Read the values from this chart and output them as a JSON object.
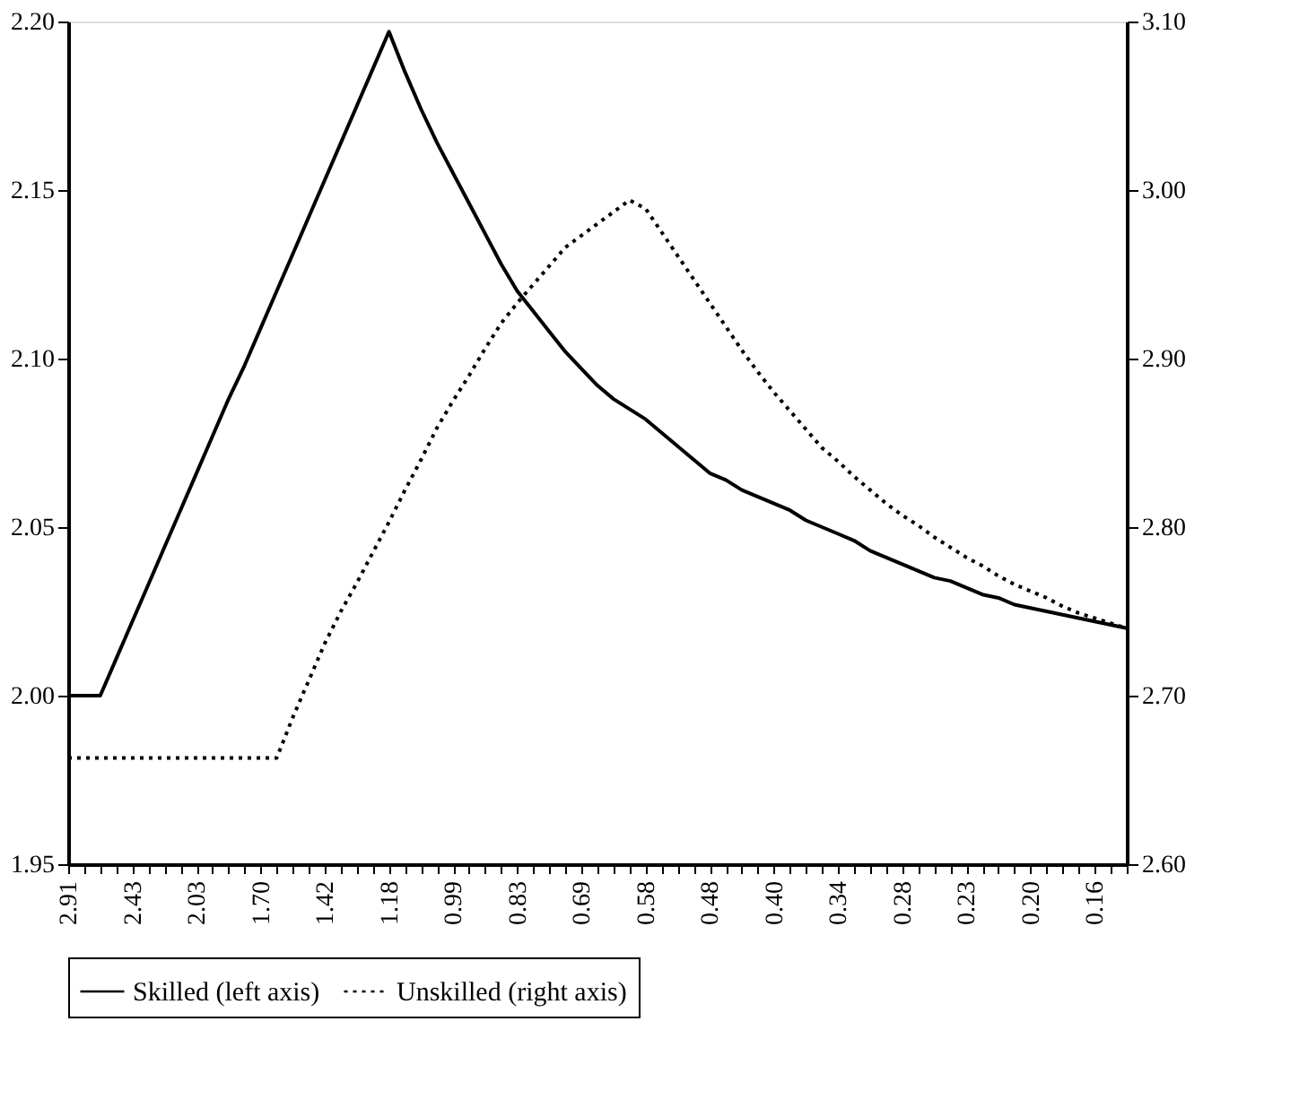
{
  "chart_data": {
    "type": "line",
    "categories": [
      "2.91",
      null,
      null,
      null,
      "2.43",
      null,
      null,
      null,
      "2.03",
      null,
      null,
      null,
      "1.70",
      null,
      null,
      null,
      "1.42",
      null,
      null,
      null,
      "1.18",
      null,
      null,
      null,
      "0.99",
      null,
      null,
      null,
      "0.83",
      null,
      null,
      null,
      "0.69",
      null,
      null,
      null,
      "0.58",
      null,
      null,
      null,
      "0.48",
      null,
      null,
      null,
      "0.40",
      null,
      null,
      null,
      "0.34",
      null,
      null,
      null,
      "0.28",
      null,
      null,
      null,
      "0.23",
      null,
      null,
      null,
      "0.20",
      null,
      null,
      null,
      "0.16",
      null,
      null
    ],
    "series": [
      {
        "name": "Skilled (left axis)",
        "color": "#000000",
        "line_style": "solid",
        "values": [
          2.0,
          2.0,
          2.0,
          2.011,
          2.022,
          2.033,
          2.044,
          2.055,
          2.066,
          2.077,
          2.088,
          2.098,
          2.109,
          2.12,
          2.131,
          2.142,
          2.153,
          2.164,
          2.175,
          2.186,
          2.197,
          2.185,
          2.174,
          2.164,
          2.155,
          2.146,
          2.137,
          2.128,
          2.12,
          2.114,
          2.108,
          2.102,
          2.097,
          2.092,
          2.088,
          2.085,
          2.082,
          2.078,
          2.074,
          2.07,
          2.066,
          2.064,
          2.061,
          2.059,
          2.057,
          2.055,
          2.052,
          2.05,
          2.048,
          2.046,
          2.043,
          2.041,
          2.039,
          2.037,
          2.035,
          2.034,
          2.032,
          2.03,
          2.029,
          2.027,
          2.026,
          2.025,
          2.024,
          2.023,
          2.022,
          2.021,
          2.02
        ]
      },
      {
        "name": "Unskilled (right axis)",
        "color": "#000000",
        "line_style": "dotted",
        "axis": "y2",
        "values": [
          2.663,
          2.663,
          2.663,
          2.663,
          2.663,
          2.663,
          2.663,
          2.663,
          2.663,
          2.663,
          2.663,
          2.663,
          2.663,
          2.663,
          2.687,
          2.709,
          2.731,
          2.75,
          2.767,
          2.785,
          2.803,
          2.822,
          2.84,
          2.859,
          2.875,
          2.89,
          2.906,
          2.921,
          2.933,
          2.944,
          2.955,
          2.966,
          2.973,
          2.98,
          2.987,
          2.994,
          2.989,
          2.975,
          2.961,
          2.947,
          2.933,
          2.919,
          2.905,
          2.892,
          2.88,
          2.869,
          2.858,
          2.847,
          2.839,
          2.83,
          2.822,
          2.814,
          2.807,
          2.801,
          2.794,
          2.788,
          2.782,
          2.777,
          2.771,
          2.766,
          2.762,
          2.758,
          2.753,
          2.749,
          2.746,
          2.743,
          2.74
        ]
      }
    ],
    "ylim": [
      1.95,
      2.2
    ],
    "yticks": [
      1.95,
      {
        "value": 2,
        "label": "2.00"
      },
      2.05,
      {
        "value": 2.1,
        "label": "2.10"
      },
      2.15,
      {
        "value": 2.2,
        "label": "2.20"
      }
    ],
    "y2lim": [
      2.6,
      3.1
    ],
    "y2ticks": [
      {
        "value": 2.6,
        "label": "2.60"
      },
      {
        "value": 2.7,
        "label": "2.70"
      },
      {
        "value": 2.8,
        "label": "2.80"
      },
      {
        "value": 2.9,
        "label": "2.90"
      },
      {
        "value": 3,
        "label": "3.00"
      },
      {
        "value": 3.1,
        "label": "3.10"
      }
    ],
    "grid": false,
    "legend": "bottom"
  }
}
